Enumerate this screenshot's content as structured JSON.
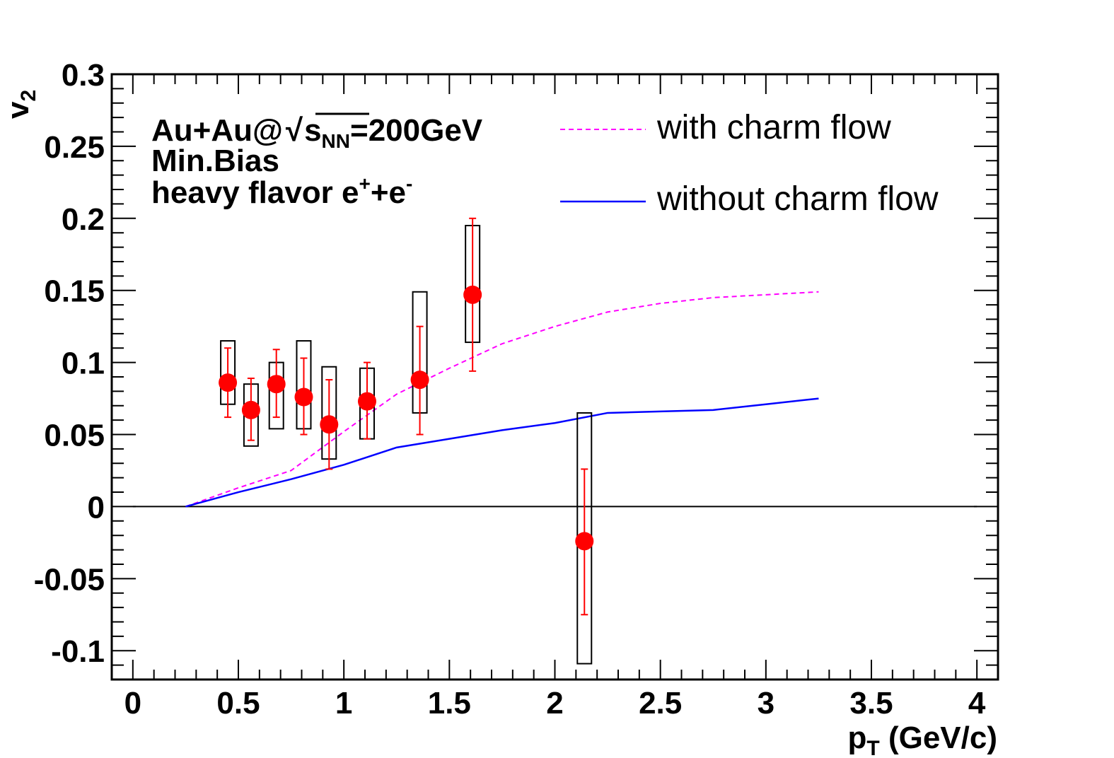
{
  "chart_data": {
    "type": "scatter",
    "xlabel_main": "p",
    "xlabel_sub": "T",
    "xlabel_unit": " (GeV/c)",
    "ylabel_main": "v",
    "ylabel_sub": "2",
    "xlim": [
      -0.1,
      4.1
    ],
    "ylim": [
      -0.12,
      0.3
    ],
    "xticks": [
      0,
      0.5,
      1,
      1.5,
      2,
      2.5,
      3,
      3.5,
      4
    ],
    "xtick_labels": [
      "0",
      "0.5",
      "1",
      "1.5",
      "2",
      "2.5",
      "3",
      "3.5",
      "4"
    ],
    "yticks": [
      -0.1,
      -0.05,
      0,
      0.05,
      0.1,
      0.15,
      0.2,
      0.25,
      0.3
    ],
    "ytick_labels": [
      "-0.1",
      "-0.05",
      "0",
      "0.05",
      "0.1",
      "0.15",
      "0.2",
      "0.25",
      "0.3"
    ],
    "annotation": {
      "line1_a": "Au+Au@",
      "line1_s": "s",
      "line1_nn": "NN",
      "line1_b": "=200GeV",
      "line2": "Min.Bias",
      "line3_a": "heavy flavor e",
      "line3_sup1": "+",
      "line3_b": "+e",
      "line3_sup2": "-"
    },
    "data_points": {
      "marker_color": "#ff0000",
      "box_color": "#000000",
      "points": [
        {
          "x": 0.45,
          "y": 0.086,
          "stat_lo": 0.062,
          "stat_hi": 0.11,
          "sys_lo": 0.071,
          "sys_hi": 0.115
        },
        {
          "x": 0.56,
          "y": 0.067,
          "stat_lo": 0.046,
          "stat_hi": 0.089,
          "sys_lo": 0.042,
          "sys_hi": 0.085
        },
        {
          "x": 0.68,
          "y": 0.085,
          "stat_lo": 0.062,
          "stat_hi": 0.109,
          "sys_lo": 0.054,
          "sys_hi": 0.1
        },
        {
          "x": 0.81,
          "y": 0.076,
          "stat_lo": 0.05,
          "stat_hi": 0.103,
          "sys_lo": 0.054,
          "sys_hi": 0.115
        },
        {
          "x": 0.93,
          "y": 0.057,
          "stat_lo": 0.026,
          "stat_hi": 0.088,
          "sys_lo": 0.033,
          "sys_hi": 0.097
        },
        {
          "x": 1.11,
          "y": 0.073,
          "stat_lo": 0.047,
          "stat_hi": 0.1,
          "sys_lo": 0.047,
          "sys_hi": 0.096
        },
        {
          "x": 1.36,
          "y": 0.088,
          "stat_lo": 0.05,
          "stat_hi": 0.125,
          "sys_lo": 0.065,
          "sys_hi": 0.149
        },
        {
          "x": 1.61,
          "y": 0.147,
          "stat_lo": 0.094,
          "stat_hi": 0.2,
          "sys_lo": 0.114,
          "sys_hi": 0.195
        },
        {
          "x": 2.14,
          "y": -0.024,
          "stat_lo": -0.075,
          "stat_hi": 0.026,
          "sys_lo": -0.109,
          "sys_hi": 0.065
        }
      ]
    },
    "series": [
      {
        "name": "with charm flow",
        "style": "dashed",
        "color": "#ff00ff",
        "x": [
          0.25,
          0.5,
          0.75,
          1.0,
          1.25,
          1.5,
          1.75,
          2.0,
          2.25,
          2.5,
          2.75,
          3.0,
          3.25
        ],
        "y": [
          0.0,
          0.013,
          0.025,
          0.052,
          0.078,
          0.096,
          0.113,
          0.125,
          0.135,
          0.141,
          0.145,
          0.147,
          0.149
        ]
      },
      {
        "name": "without charm flow",
        "style": "solid",
        "color": "#0000ff",
        "x": [
          0.25,
          0.5,
          0.75,
          1.0,
          1.25,
          1.5,
          1.75,
          2.0,
          2.25,
          2.5,
          2.75,
          3.0,
          3.25
        ],
        "y": [
          0.0,
          0.01,
          0.019,
          0.029,
          0.041,
          0.047,
          0.053,
          0.058,
          0.065,
          0.066,
          0.067,
          0.071,
          0.075
        ]
      }
    ],
    "zero_line_color": "#000000"
  }
}
